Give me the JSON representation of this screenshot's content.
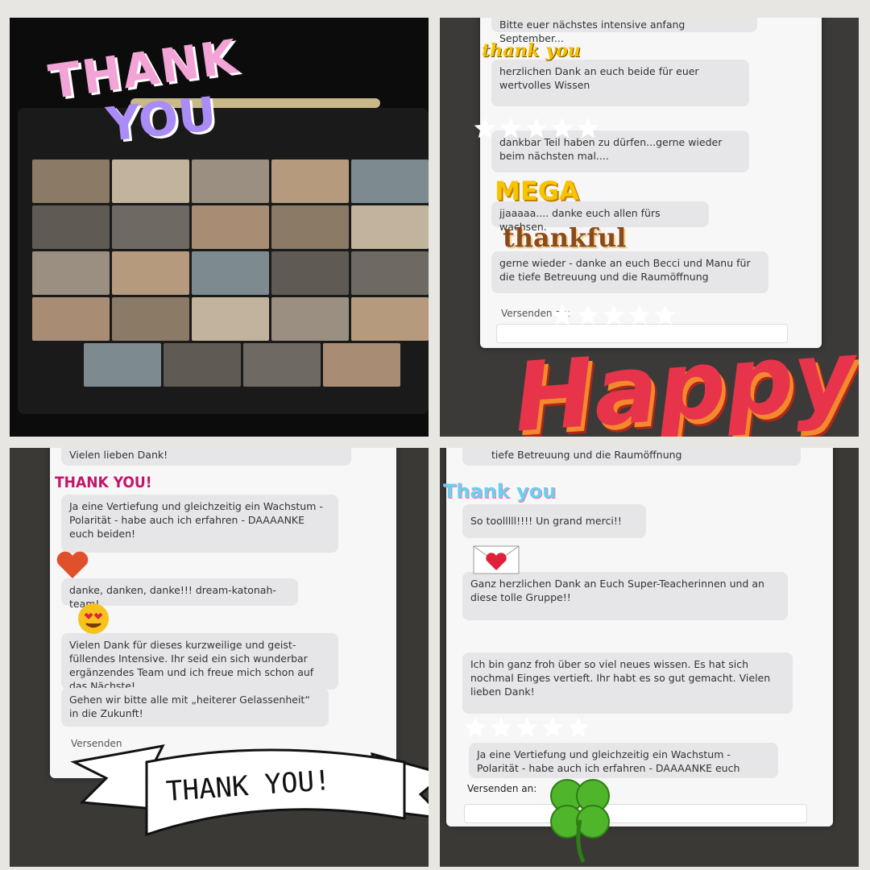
{
  "panels": [
    {
      "stickers": [
        "THANK",
        "YOU"
      ]
    },
    {
      "messages": [
        "Bitte euer nächstes intensive anfang September...",
        "herzlichen Dank an euch beide für euer wertvolles Wissen",
        "dankbar Teil haben zu dürfen...gerne wieder beim nächsten mal....",
        "jjaaaaa.... danke euch allen fürs wachsen.",
        "gerne wieder - danke an euch Becci und Manu für die tiefe Betreuung und die Raumöffnung"
      ],
      "send": "Versenden an:",
      "stickers": [
        "thank you",
        "MEGA",
        "thankful",
        "Happy"
      ]
    },
    {
      "messages": [
        "Vielen lieben Dank!",
        "Ja eine Vertiefung und gleichzeitig ein Wachstum - Polarität - habe auch ich erfahren - DAAAANKE euch beiden!",
        "danke, danken, danke!!! dream-katonah-team!",
        "Vielen Dank für dieses kurzweilige und geist-füllendes Intensive. Ihr seid ein sich wunderbar ergänzendes Team und ich freue mich schon auf das Nächste!",
        "Gehen wir bitte alle mit „heiterer Gelassenheit“ in die Zukunft!"
      ],
      "send": "Versenden",
      "stickers": [
        "THANK YOU!",
        "THANK YOU!"
      ]
    },
    {
      "messages": [
        "tiefe Betreuung und die Raumöffnung",
        "So toolllll!!!! Un grand merci!!",
        "Ganz herzlichen Dank an Euch Super-Teacherinnen und an diese tolle Gruppe!!",
        "Ich bin ganz froh über so viel neues wissen. Es hat sich nochmal Einges vertieft. Ihr habt es so gut gemacht. Vielen lieben Dank!",
        "Ja eine Vertiefung und gleichzeitig ein Wachstum - Polarität - habe auch ich erfahren - DAAAANKE euch"
      ],
      "send": "Versenden an:",
      "stickers": [
        "Thank you"
      ]
    }
  ]
}
